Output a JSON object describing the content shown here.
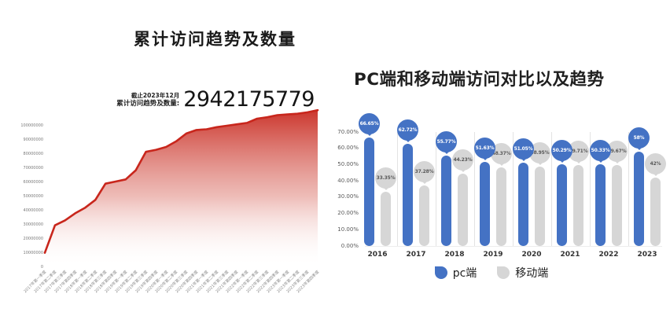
{
  "chart_data": [
    {
      "type": "area",
      "title": "累计访问趋势及数量",
      "annotation": {
        "asof": "截止2023年12月",
        "label": "累计访问趋势及数量:",
        "value": "2942175779"
      },
      "line_color": "#c8261c",
      "xlabel": "",
      "ylabel": "",
      "ylim": [
        0,
        115000000
      ],
      "grid": false,
      "x_labels_rotated": true,
      "y_ticks": [
        {
          "label": "100000000",
          "v": 100000000
        },
        {
          "label": "90000000",
          "v": 90000000
        },
        {
          "label": "80000000",
          "v": 80000000
        },
        {
          "label": "70000000",
          "v": 70000000
        },
        {
          "label": "60000000",
          "v": 60000000
        },
        {
          "label": "50000000",
          "v": 50000000
        },
        {
          "label": "40000000",
          "v": 40000000
        },
        {
          "label": "30000000",
          "v": 30000000
        },
        {
          "label": "20000000",
          "v": 20000000
        },
        {
          "label": "10000000",
          "v": 10000000
        },
        {
          "label": "0",
          "v": 0
        }
      ],
      "categories": [
        "2017年第一季度",
        "2017年第二季度",
        "2017年第三季度",
        "2017年第四季度",
        "2018年第一季度",
        "2018年第二季度",
        "2018年第三季度",
        "2018年第四季度",
        "2019年第一季度",
        "2019年第二季度",
        "2019年第三季度",
        "2019年第四季度",
        "2020年第一季度",
        "2020年第二季度",
        "2020年第三季度",
        "2020年第四季度",
        "2021年第一季度",
        "2021年第二季度",
        "2021年第三季度",
        "2021年第四季度",
        "2022年第一季度",
        "2022年第二季度",
        "2022年第三季度",
        "2022年第四季度",
        "2023年第一季度",
        "2023年第二季度",
        "2023年第三季度",
        "2023年第四季度"
      ],
      "values": [
        10500000,
        30000000,
        33500000,
        38500000,
        42500000,
        48000000,
        59500000,
        61000000,
        62500000,
        69000000,
        82000000,
        83500000,
        85500000,
        89500000,
        95000000,
        97500000,
        98000000,
        99500000,
        100500000,
        101500000,
        102500000,
        105500000,
        106500000,
        108000000,
        108500000,
        109000000,
        110000000,
        111500000
      ]
    },
    {
      "type": "bar",
      "title": "PC端和移动端访问对比以及趋势",
      "xlabel": "",
      "ylabel": "",
      "ylim": [
        0,
        70
      ],
      "grid": false,
      "legend_position": "bottom",
      "y_ticks": [
        {
          "label": "70.00%",
          "v": 70
        },
        {
          "label": "60.00%",
          "v": 60
        },
        {
          "label": "50.00%",
          "v": 50
        },
        {
          "label": "40.00%",
          "v": 40
        },
        {
          "label": "30.00%",
          "v": 30
        },
        {
          "label": "20.00%",
          "v": 20
        },
        {
          "label": "10.00%",
          "v": 10
        },
        {
          "label": "0.00%",
          "v": 0
        }
      ],
      "categories": [
        "2016",
        "2017",
        "2018",
        "2019",
        "2020",
        "2021",
        "2022",
        "2023"
      ],
      "series": [
        {
          "name": "pc端",
          "color": "#4472c4",
          "values": [
            66.65,
            62.72,
            55.77,
            51.63,
            51.05,
            50.29,
            50.33,
            58
          ],
          "labels": [
            "66.65%",
            "62.72%",
            "55.77%",
            "51.63%",
            "51.05%",
            "50.29%",
            "50.33%",
            "58%"
          ]
        },
        {
          "name": "移动端",
          "color": "#d6d6d6",
          "values": [
            33.35,
            37.28,
            44.23,
            48.37,
            48.95,
            49.71,
            49.67,
            42
          ],
          "labels": [
            "33.35%",
            "37.28%",
            "44.23%",
            "48.37%",
            "48.95%",
            "49.71%",
            "49.67%",
            "42%"
          ]
        }
      ],
      "legend": [
        {
          "label": "pc端",
          "color": "#4472c4"
        },
        {
          "label": "移动端",
          "color": "#d6d6d6"
        }
      ]
    }
  ]
}
